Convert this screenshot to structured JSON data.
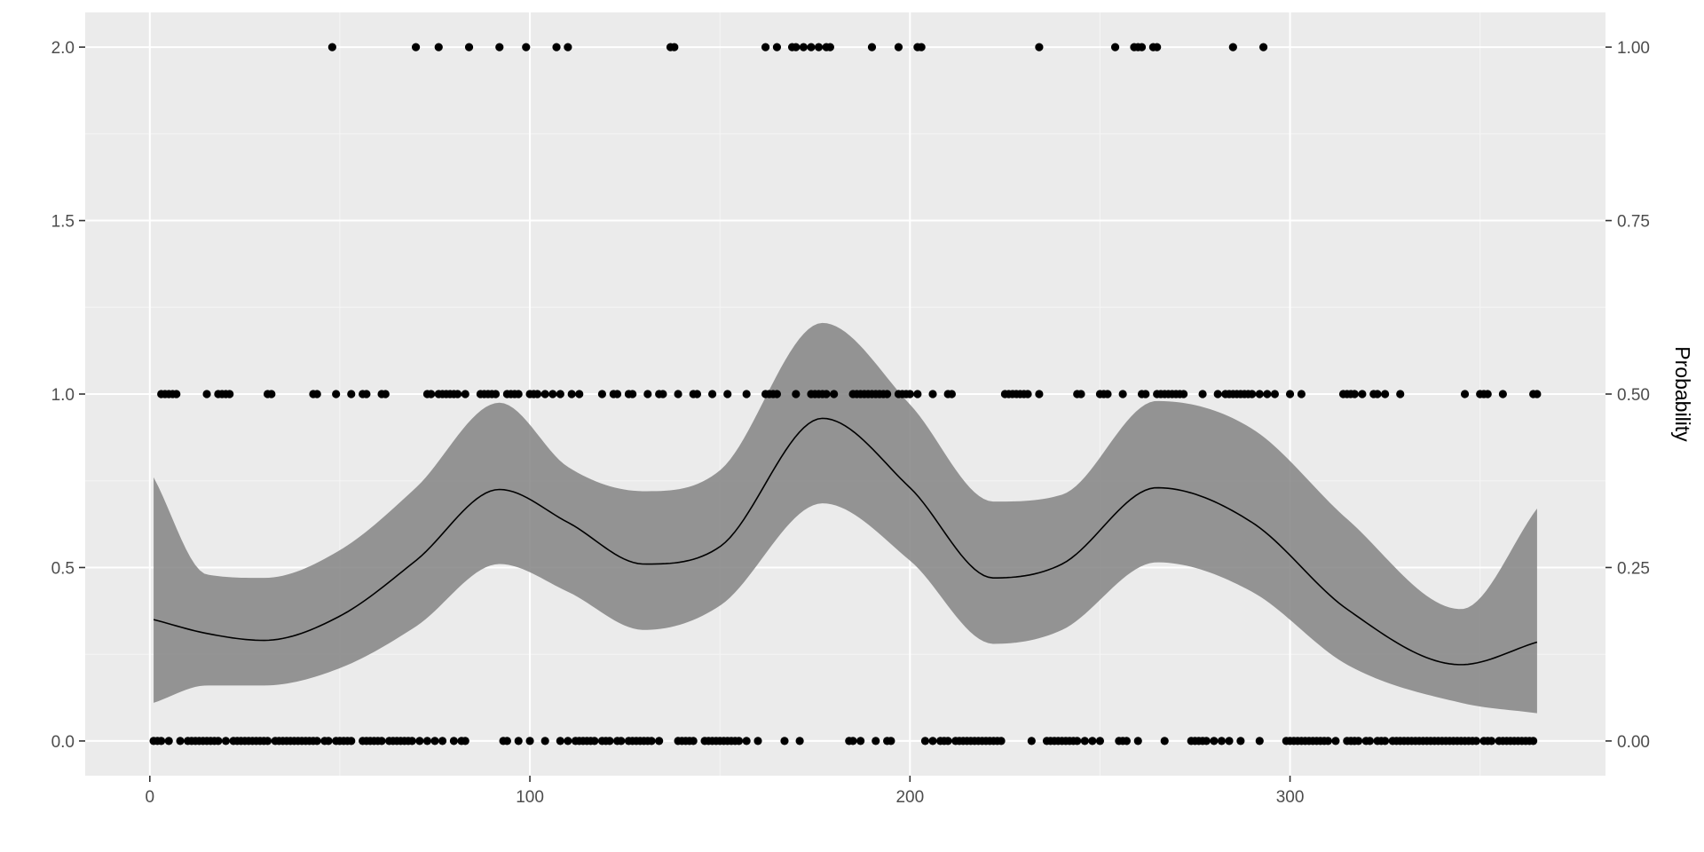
{
  "chart_data": {
    "type": "scatter",
    "title": "",
    "xlabel": "",
    "ylabel": "",
    "y2label": "Probability",
    "xlim": [
      -17,
      383
    ],
    "ylim": [
      -0.1,
      2.1
    ],
    "x_ticks": [
      0,
      100,
      200,
      300
    ],
    "x_tick_labels": [
      "0",
      "100",
      "200",
      "300"
    ],
    "y_ticks": [
      0,
      0.5,
      1,
      1.5,
      2
    ],
    "y_tick_labels": [
      "0.0",
      "0.5",
      "1.0",
      "1.5",
      "2.0"
    ],
    "y2_ticks": [
      0,
      0.25,
      0.5,
      0.75,
      1
    ],
    "y2_tick_labels": [
      "0.00",
      "0.25",
      "0.50",
      "0.75",
      "1.00"
    ],
    "y2_scale": 2,
    "grid": true,
    "colors": {
      "panel": "#ebebeb",
      "grid_major": "#ffffff",
      "grid_minor": "#f5f5f5",
      "points": "#000000",
      "ribbon": "#7f7f7f",
      "line": "#000000"
    },
    "series": [
      {
        "type": "scatter",
        "y": 0,
        "x": [
          1,
          2,
          3,
          5,
          8,
          10,
          11,
          12,
          13,
          14,
          15,
          16,
          17,
          18,
          20,
          22,
          23,
          24,
          25,
          26,
          27,
          28,
          29,
          30,
          31,
          33,
          34,
          35,
          36,
          37,
          38,
          39,
          40,
          41,
          42,
          43,
          44,
          46,
          47,
          49,
          50,
          51,
          52,
          53,
          56,
          57,
          58,
          59,
          60,
          61,
          63,
          64,
          65,
          66,
          67,
          68,
          69,
          71,
          73,
          75,
          77,
          80,
          82,
          83,
          93,
          94,
          97,
          100,
          104,
          108,
          110,
          112,
          113,
          114,
          115,
          116,
          117,
          119,
          120,
          121,
          123,
          124,
          126,
          127,
          128,
          129,
          130,
          131,
          132,
          134,
          139,
          140,
          141,
          142,
          143,
          146,
          147,
          148,
          149,
          150,
          151,
          152,
          153,
          154,
          155,
          157,
          160,
          167,
          171,
          184,
          185,
          187,
          191,
          194,
          195,
          204,
          206,
          208,
          209,
          210,
          212,
          213,
          214,
          215,
          216,
          217,
          218,
          219,
          220,
          221,
          222,
          223,
          224,
          232,
          236,
          237,
          238,
          239,
          240,
          241,
          242,
          243,
          244,
          246,
          248,
          250,
          255,
          256,
          257,
          260,
          267,
          274,
          275,
          276,
          277,
          278,
          280,
          282,
          284,
          287,
          292,
          299,
          300,
          301,
          302,
          303,
          304,
          305,
          306,
          307,
          308,
          309,
          310,
          312,
          315,
          316,
          317,
          318,
          320,
          321,
          323,
          324,
          325,
          327,
          328,
          329,
          330,
          331,
          332,
          333,
          334,
          335,
          336,
          337,
          338,
          339,
          340,
          341,
          342,
          343,
          344,
          345,
          346,
          347,
          348,
          349,
          351,
          352,
          353,
          355,
          356,
          357,
          358,
          359,
          360,
          361,
          362,
          363,
          364
        ]
      },
      {
        "type": "scatter",
        "y": 1,
        "x": [
          3,
          4,
          5,
          6,
          7,
          15,
          18,
          19,
          20,
          21,
          31,
          32,
          43,
          44,
          49,
          53,
          56,
          57,
          61,
          62,
          73,
          74,
          76,
          77,
          78,
          79,
          80,
          81,
          83,
          87,
          88,
          89,
          90,
          91,
          94,
          95,
          96,
          97,
          100,
          101,
          102,
          104,
          106,
          108,
          111,
          113,
          119,
          122,
          123,
          126,
          127,
          131,
          134,
          135,
          139,
          143,
          144,
          148,
          152,
          157,
          162,
          163,
          164,
          165,
          170,
          174,
          175,
          176,
          177,
          178,
          180,
          185,
          186,
          187,
          188,
          189,
          190,
          191,
          192,
          193,
          194,
          197,
          198,
          199,
          200,
          202,
          206,
          210,
          211,
          225,
          226,
          227,
          228,
          229,
          230,
          231,
          234,
          244,
          245,
          250,
          251,
          252,
          256,
          261,
          262,
          265,
          266,
          267,
          268,
          269,
          270,
          271,
          272,
          277,
          281,
          283,
          284,
          285,
          286,
          287,
          288,
          289,
          290,
          292,
          294,
          296,
          300,
          303,
          314,
          315,
          316,
          317,
          319,
          322,
          323,
          325,
          329,
          346,
          350,
          351,
          352,
          356,
          364,
          365
        ]
      },
      {
        "type": "scatter",
        "y": 2,
        "x": [
          48,
          70,
          76,
          84,
          92,
          99,
          107,
          110,
          137,
          138,
          162,
          165,
          169,
          170,
          172,
          174,
          176,
          178,
          179,
          190,
          197,
          202,
          203,
          234,
          254,
          259,
          260,
          261,
          264,
          265,
          285,
          293
        ]
      },
      {
        "type": "line",
        "name": "",
        "x": [
          1,
          15,
          30,
          50,
          70,
          92,
          110,
          130,
          150,
          177,
          200,
          222,
          240,
          265,
          290,
          315,
          345,
          365
        ],
        "y": [
          0.35,
          0.31,
          0.29,
          0.36,
          0.52,
          0.725,
          0.63,
          0.51,
          0.56,
          0.93,
          0.73,
          0.47,
          0.51,
          0.73,
          0.63,
          0.38,
          0.22,
          0.285
        ]
      },
      {
        "type": "ribbon",
        "name": "",
        "x": [
          1,
          15,
          30,
          50,
          70,
          92,
          110,
          130,
          150,
          177,
          200,
          222,
          240,
          265,
          290,
          315,
          345,
          365
        ],
        "lower": [
          0.11,
          0.16,
          0.16,
          0.21,
          0.33,
          0.51,
          0.43,
          0.32,
          0.39,
          0.685,
          0.52,
          0.28,
          0.32,
          0.515,
          0.43,
          0.22,
          0.11,
          0.08
        ],
        "upper": [
          0.76,
          0.48,
          0.47,
          0.55,
          0.73,
          0.975,
          0.79,
          0.72,
          0.78,
          1.205,
          0.97,
          0.69,
          0.71,
          0.98,
          0.9,
          0.64,
          0.38,
          0.67
        ]
      }
    ]
  }
}
